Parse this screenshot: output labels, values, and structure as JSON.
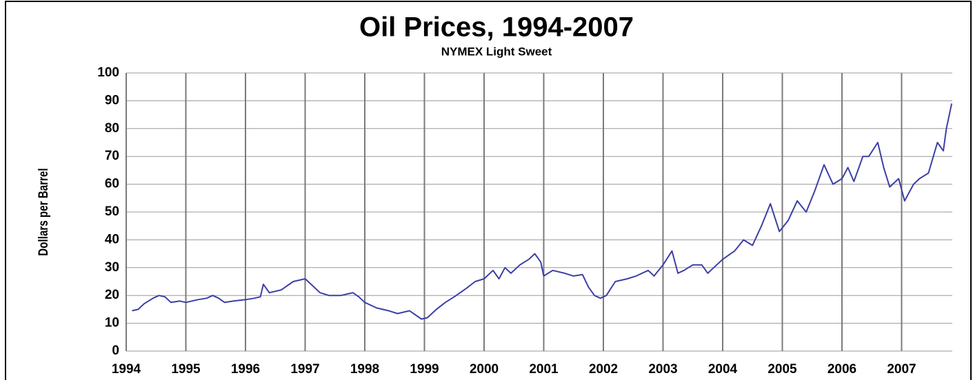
{
  "chart_data": {
    "type": "line",
    "title": "Oil Prices, 1994-2007",
    "subtitle": "NYMEX Light Sweet",
    "y_label": "Dollars per Barrel",
    "x": [
      1994.1,
      1994.2,
      1994.3,
      1994.45,
      1994.55,
      1994.65,
      1994.75,
      1994.9,
      1995.0,
      1995.2,
      1995.35,
      1995.45,
      1995.55,
      1995.65,
      1995.8,
      1996.0,
      1996.15,
      1996.25,
      1996.3,
      1996.4,
      1996.6,
      1996.8,
      1997.0,
      1997.1,
      1997.25,
      1997.4,
      1997.6,
      1997.8,
      1997.9,
      1998.0,
      1998.2,
      1998.4,
      1998.55,
      1998.75,
      1998.95,
      1999.05,
      1999.2,
      1999.35,
      1999.5,
      1999.7,
      1999.85,
      2000.0,
      2000.15,
      2000.25,
      2000.35,
      2000.45,
      2000.6,
      2000.75,
      2000.85,
      2000.95,
      2001.0,
      2001.15,
      2001.35,
      2001.5,
      2001.65,
      2001.75,
      2001.85,
      2001.95,
      2002.05,
      2002.2,
      2002.4,
      2002.55,
      2002.75,
      2002.85,
      2003.0,
      2003.15,
      2003.25,
      2003.35,
      2003.5,
      2003.65,
      2003.75,
      2003.85,
      2004.0,
      2004.2,
      2004.35,
      2004.5,
      2004.65,
      2004.8,
      2004.95,
      2005.1,
      2005.25,
      2005.4,
      2005.55,
      2005.7,
      2005.85,
      2006.0,
      2006.1,
      2006.2,
      2006.35,
      2006.45,
      2006.6,
      2006.7,
      2006.8,
      2006.95,
      2007.05,
      2007.2,
      2007.3,
      2007.45,
      2007.6,
      2007.7,
      2007.75,
      2007.84
    ],
    "values": [
      14.5,
      15,
      17,
      19,
      20,
      19.5,
      17.5,
      18,
      17.5,
      18.5,
      19,
      20,
      19,
      17.5,
      18,
      18.5,
      19,
      19.5,
      24,
      21,
      22,
      25,
      26,
      24,
      21,
      20,
      20,
      21,
      19.5,
      17.5,
      15.5,
      14.5,
      13.5,
      14.5,
      11.5,
      12,
      15,
      17.5,
      19.5,
      22.5,
      25,
      26,
      29,
      26,
      30,
      28,
      31,
      33,
      35,
      32,
      27,
      29,
      28,
      27,
      27.5,
      23,
      20,
      19,
      20,
      25,
      26,
      27,
      29,
      27,
      31,
      36,
      28,
      29,
      31,
      31,
      28,
      30,
      33,
      36,
      40,
      38,
      45,
      53,
      43,
      47,
      54,
      50,
      58,
      67,
      60,
      62,
      66,
      61,
      70,
      70,
      75,
      66,
      59,
      62,
      54,
      60,
      62,
      64,
      75,
      72,
      80,
      89
    ],
    "color": "#3b3fa6",
    "xlim": [
      1994,
      2007.85
    ],
    "xticks": [
      1994,
      1995,
      1996,
      1997,
      1998,
      1999,
      2000,
      2001,
      2002,
      2003,
      2004,
      2005,
      2006,
      2007
    ],
    "ylim": [
      0,
      100
    ],
    "yticks": [
      0,
      10,
      20,
      30,
      40,
      50,
      60,
      70,
      80,
      90,
      100
    ],
    "grid": true
  }
}
